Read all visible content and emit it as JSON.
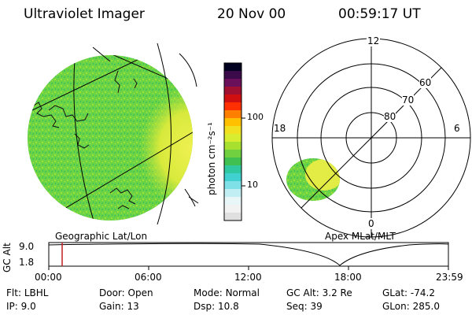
{
  "header": {
    "instrument": "Ultraviolet Imager",
    "date": "20 Nov 00",
    "time": "00:59:17 UT"
  },
  "left_panel": {
    "label": "Geographic Lat/Lon",
    "fill_color": "#6ed640",
    "bright_color": "#e6ee50"
  },
  "colorbar": {
    "unit_label": "photon cm⁻²s⁻¹",
    "ticks": [
      "100",
      "10"
    ],
    "colors": [
      "#000020",
      "#3a0a4a",
      "#6a0f5a",
      "#a01030",
      "#d01010",
      "#ff3000",
      "#ff8000",
      "#ffc000",
      "#f0e020",
      "#d8ec30",
      "#a8e030",
      "#70d040",
      "#40c050",
      "#30c8a0",
      "#40d0d0",
      "#80e0e8",
      "#c0eef2",
      "#e8f6f8",
      "#f2f2f2",
      "#e0e0e0"
    ]
  },
  "right_panel": {
    "label": "Apex MLat/MLT",
    "mlt_labels": {
      "top": "12",
      "left": "18",
      "right": "6",
      "bottom": "0"
    },
    "lat_labels": [
      "60",
      "70",
      "80"
    ]
  },
  "altitude_plot": {
    "ylabel": "GC Alt",
    "y_ticks": [
      "9.0",
      "1.8"
    ],
    "x_ticks": [
      "00:00",
      "06:00",
      "12:00",
      "18:00",
      "23:59"
    ],
    "marker_color": "#c02020"
  },
  "footer": {
    "rows": [
      [
        {
          "label": "Flt:",
          "value": "LBHL"
        },
        {
          "label": "Door:",
          "value": "Open"
        },
        {
          "label": "Mode:",
          "value": "Normal"
        },
        {
          "label": "GC Alt:",
          "value": "3.2 Re"
        },
        {
          "label": "GLat:",
          "value": "-74.2"
        }
      ],
      [
        {
          "label": "IP:",
          "value": "9.0"
        },
        {
          "label": "Gain:",
          "value": "13"
        },
        {
          "label": "Dsp:",
          "value": "10.8"
        },
        {
          "label": "Seq:",
          "value": "39"
        },
        {
          "label": "GLon:",
          "value": "285.0"
        }
      ]
    ]
  }
}
